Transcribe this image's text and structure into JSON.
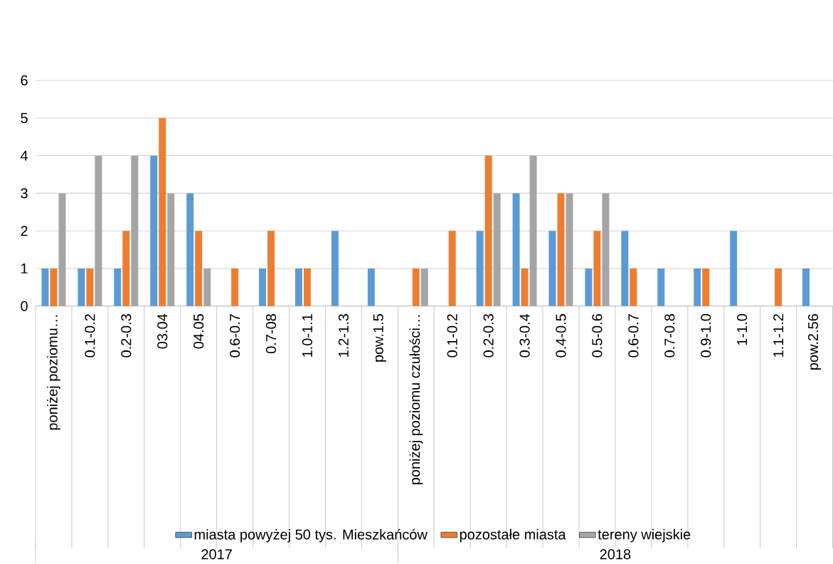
{
  "chart_data": {
    "type": "bar",
    "categories": [
      "poniżej poziomu…",
      "0.1-0.2",
      "0.2-0.3",
      "03.04",
      "04.05",
      "0.6-0.7",
      "0.7-08",
      "1.0-1.1",
      "1.2-1.3",
      "pow.1.5",
      "poniżej poziomu czułości…",
      "0.1-0.2",
      "0.2-0.3",
      "0.3-0.4",
      "0.4-0.5",
      "0.5-0.6",
      "0.6-0.7",
      "0.7-0.8",
      "0.9-1.0",
      "1-1.0",
      "1.1-1.2",
      "pow.2.56"
    ],
    "series": [
      {
        "name": "miasta powyżej 50 tys. Mieszkańców",
        "color": "#5b9bd5",
        "values": [
          1,
          1,
          1,
          4,
          3,
          0,
          1,
          1,
          2,
          1,
          0,
          0,
          2,
          3,
          2,
          1,
          2,
          1,
          1,
          2,
          0,
          1
        ]
      },
      {
        "name": "pozostałe miasta",
        "color": "#ed7d31",
        "values": [
          1,
          1,
          2,
          5,
          2,
          1,
          2,
          1,
          0,
          0,
          1,
          2,
          4,
          1,
          3,
          2,
          1,
          0,
          1,
          0,
          1,
          0
        ]
      },
      {
        "name": "tereny wiejskie",
        "color": "#a5a5a5",
        "values": [
          3,
          4,
          4,
          3,
          1,
          0,
          0,
          0,
          0,
          0,
          1,
          0,
          3,
          4,
          3,
          3,
          0,
          0,
          0,
          0,
          0,
          0
        ]
      }
    ],
    "ylim": [
      0,
      6
    ],
    "yticks": [
      0,
      1,
      2,
      3,
      4,
      5,
      6
    ],
    "grid": "y",
    "legend": "bottom",
    "annotations": [
      "2017",
      "2018"
    ]
  }
}
